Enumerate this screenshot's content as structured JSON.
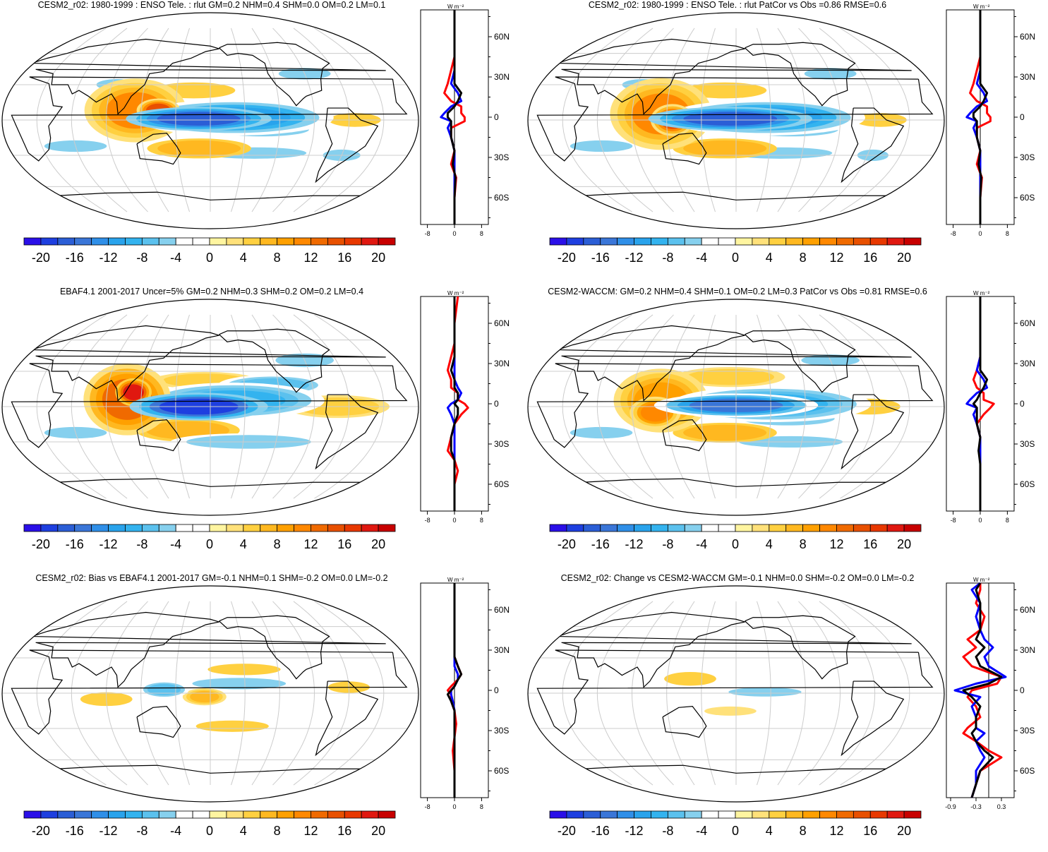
{
  "colorbar": {
    "levels": [
      -22,
      -20,
      -18,
      -16,
      -14,
      -12,
      -10,
      -8,
      -6,
      -4,
      -2,
      0,
      2,
      4,
      6,
      8,
      10,
      12,
      14,
      16,
      18,
      20,
      22
    ],
    "tick_labels": [
      "-20",
      "-16",
      "-12",
      "-8",
      "-4",
      "0",
      "4",
      "8",
      "12",
      "16",
      "20"
    ],
    "tick_values": [
      -20,
      -16,
      -12,
      -8,
      -4,
      0,
      4,
      8,
      12,
      16,
      20
    ],
    "colors": [
      "#2a0fe8",
      "#1e3fe0",
      "#2b5ed6",
      "#3a76d8",
      "#2f8fe8",
      "#29a3ec",
      "#33b3ef",
      "#5bc1ee",
      "#86d0ee",
      "#ffffff",
      "#ffffff",
      "#fff5a0",
      "#ffe17a",
      "#ffd040",
      "#ffb820",
      "#ffa000",
      "#ff8800",
      "#f06a00",
      "#e85000",
      "#e83800",
      "#e01810",
      "#c80000"
    ]
  },
  "zonal_unit": "W m⁻²",
  "lat_ticks": [
    "60N",
    "30N",
    "0",
    "30S",
    "60S"
  ],
  "line_colors": {
    "model": "#ff0000",
    "obs": "#0000ff",
    "diff": "#000000"
  },
  "chart_data": [
    {
      "type": "heatmap",
      "title": "CESM2_r02: 1980-1999 : ENSO Tele. : rlut GM=0.2 NHM=0.4 SHM=0.0 OM=0.2 LM=0.1",
      "zonal_xticks": [
        "-8",
        "0",
        "8"
      ],
      "zonal_xlim": [
        -10,
        10
      ],
      "features": [
        {
          "lon": 170,
          "lat": 1,
          "rlon": 40,
          "rlat": 6,
          "v": -18
        },
        {
          "lon": 200,
          "lat": 2,
          "rlon": 55,
          "rlat": 9,
          "v": -11
        },
        {
          "lon": 225,
          "lat": -8,
          "rlon": 45,
          "rlat": 6,
          "v": -6
        },
        {
          "lon": 115,
          "lat": 8,
          "rlon": 28,
          "rlat": 16,
          "v": 10
        },
        {
          "lon": 135,
          "lat": 8,
          "rlon": 12,
          "rlat": 6,
          "v": 15
        },
        {
          "lon": 165,
          "lat": 25,
          "rlon": 40,
          "rlat": 7,
          "v": 4
        },
        {
          "lon": 170,
          "lat": -24,
          "rlon": 40,
          "rlat": 7,
          "v": 6
        },
        {
          "lon": 95,
          "lat": 30,
          "rlon": 20,
          "rlat": 5,
          "v": -6
        },
        {
          "lon": 60,
          "lat": -22,
          "rlon": 30,
          "rlat": 5,
          "v": -5
        },
        {
          "lon": 220,
          "lat": -28,
          "rlon": 50,
          "rlat": 5,
          "v": -5
        },
        {
          "lon": 305,
          "lat": 0,
          "rlon": 25,
          "rlat": 6,
          "v": 4
        },
        {
          "lon": 300,
          "lat": -30,
          "rlon": 18,
          "rlat": 5,
          "v": -5
        },
        {
          "lon": 270,
          "lat": 40,
          "rlon": 25,
          "rlat": 5,
          "v": -5
        },
        {
          "lon": 40,
          "lat": 5,
          "rlon": 10,
          "rlat": 12,
          "v": -4
        }
      ],
      "zonal": {
        "lat": [
          -80,
          -60,
          -45,
          -35,
          -25,
          -15,
          -8,
          -3,
          0,
          3,
          8,
          12,
          18,
          25,
          35,
          45,
          60,
          80
        ],
        "model": [
          0,
          0,
          0.5,
          -1,
          0,
          -1,
          -1,
          3,
          3,
          2,
          2,
          -1,
          -3,
          -2,
          -1,
          0,
          0,
          0
        ],
        "obs": [
          0,
          0,
          0,
          0,
          0,
          -1,
          -2,
          -1,
          -4,
          -3,
          -1,
          2,
          1,
          -1,
          0,
          0,
          0,
          0
        ],
        "diff": [
          0,
          0,
          0.3,
          -0.5,
          0,
          -1,
          -1,
          -1,
          -2,
          -2,
          0,
          1,
          2,
          0,
          0,
          0,
          0,
          0
        ]
      }
    },
    {
      "type": "heatmap",
      "title": "CESM2_r02: 1980-1999 : ENSO Tele. : rlut PatCor vs Obs =0.86 RMSE=0.6",
      "zonal_xticks": [
        "-8",
        "0",
        "8"
      ],
      "zonal_xlim": [
        -10,
        10
      ],
      "features": [
        {
          "lon": 175,
          "lat": 1,
          "rlon": 45,
          "rlat": 6,
          "v": -18
        },
        {
          "lon": 205,
          "lat": 2,
          "rlon": 55,
          "rlat": 9,
          "v": -11
        },
        {
          "lon": 228,
          "lat": -8,
          "rlon": 45,
          "rlat": 6,
          "v": -6
        },
        {
          "lon": 115,
          "lat": 5,
          "rlon": 28,
          "rlat": 18,
          "v": 10
        },
        {
          "lon": 125,
          "lat": 0,
          "rlon": 12,
          "rlat": 8,
          "v": 14
        },
        {
          "lon": 170,
          "lat": 25,
          "rlon": 40,
          "rlat": 7,
          "v": 4
        },
        {
          "lon": 170,
          "lat": -24,
          "rlon": 40,
          "rlat": 7,
          "v": 6
        },
        {
          "lon": 95,
          "lat": 30,
          "rlon": 20,
          "rlat": 5,
          "v": -6
        },
        {
          "lon": 60,
          "lat": -22,
          "rlon": 30,
          "rlat": 5,
          "v": -5
        },
        {
          "lon": 220,
          "lat": -28,
          "rlon": 50,
          "rlat": 5,
          "v": -5
        },
        {
          "lon": 305,
          "lat": 0,
          "rlon": 25,
          "rlat": 6,
          "v": 4
        },
        {
          "lon": 305,
          "lat": -30,
          "rlon": 15,
          "rlat": 5,
          "v": -5
        },
        {
          "lon": 270,
          "lat": 40,
          "rlon": 25,
          "rlat": 5,
          "v": -5
        }
      ],
      "zonal": {
        "lat": [
          -80,
          -60,
          -45,
          -35,
          -25,
          -15,
          -8,
          -3,
          0,
          3,
          8,
          12,
          18,
          25,
          35,
          45,
          60,
          80
        ],
        "model": [
          0,
          0,
          0.5,
          -1,
          0,
          -1,
          -1,
          3,
          3,
          2,
          2,
          -1,
          -3,
          -2,
          -1,
          0,
          0,
          0
        ],
        "obs": [
          0,
          0,
          0,
          0,
          0,
          -1,
          -2,
          -1,
          -4,
          -3,
          -1,
          2,
          1,
          -1,
          0,
          0,
          0,
          0
        ],
        "diff": [
          0,
          0,
          0.3,
          -0.5,
          0,
          -1,
          -1,
          -1,
          -2,
          -2,
          0,
          1,
          2,
          0,
          0,
          0,
          0,
          0
        ]
      }
    },
    {
      "type": "heatmap",
      "title": "EBAF4.1 2001-2017 Uncer=5% GM=0.2 NHM=0.3 SHM=0.2 OM=0.2 LM=0.4",
      "zonal_xticks": [
        "-8",
        "0",
        "8"
      ],
      "zonal_xlim": [
        -10,
        10
      ],
      "features": [
        {
          "lon": 170,
          "lat": 0,
          "rlon": 38,
          "rlat": 7,
          "v": -20
        },
        {
          "lon": 200,
          "lat": 5,
          "rlon": 50,
          "rlat": 9,
          "v": -10
        },
        {
          "lon": 235,
          "lat": 18,
          "rlon": 35,
          "rlat": 6,
          "v": -8
        },
        {
          "lon": 108,
          "lat": 6,
          "rlon": 24,
          "rlat": 18,
          "v": 12
        },
        {
          "lon": 113,
          "lat": 12,
          "rlon": 10,
          "rlat": 7,
          "v": 18
        },
        {
          "lon": 175,
          "lat": 22,
          "rlon": 40,
          "rlat": 6,
          "v": 5
        },
        {
          "lon": 160,
          "lat": -20,
          "rlon": 40,
          "rlat": 8,
          "v": 6
        },
        {
          "lon": 215,
          "lat": -30,
          "rlon": 60,
          "rlat": 6,
          "v": -6
        },
        {
          "lon": 60,
          "lat": -22,
          "rlon": 30,
          "rlat": 5,
          "v": -5
        },
        {
          "lon": 290,
          "lat": 0,
          "rlon": 40,
          "rlat": 8,
          "v": 5
        },
        {
          "lon": 270,
          "lat": 40,
          "rlon": 28,
          "rlat": 6,
          "v": -5
        },
        {
          "lon": 320,
          "lat": 42,
          "rlon": 18,
          "rlat": 4,
          "v": -4
        }
      ],
      "zonal": {
        "lat": [
          -80,
          -60,
          -50,
          -42,
          -35,
          -25,
          -15,
          -8,
          -3,
          0,
          3,
          8,
          12,
          18,
          25,
          35,
          45,
          60,
          80
        ],
        "model": [
          0,
          0,
          1,
          0,
          -2,
          -1,
          0,
          2,
          4,
          3,
          1,
          1,
          -1,
          -1,
          -2,
          -1,
          0,
          0,
          1
        ],
        "obs": [
          0,
          0,
          0,
          0,
          0,
          0,
          0,
          -1,
          -2,
          -1,
          1,
          2,
          1,
          0,
          0,
          0,
          0,
          0,
          0
        ],
        "diff": [
          0,
          0,
          0,
          0,
          -1,
          -1,
          0,
          1,
          1,
          0,
          1,
          1,
          0,
          0,
          -1,
          0,
          0,
          0,
          0
        ]
      }
    },
    {
      "type": "heatmap",
      "title": "CESM2-WACCM: GM=0.2 NHM=0.4 SHM=0.1 OM=0.2 LM=0.3 PatCor vs Obs =0.81 RMSE=0.6",
      "zonal_xticks": [
        "-8",
        "0",
        "8"
      ],
      "zonal_xlim": [
        -10,
        10
      ],
      "features": [
        {
          "lon": 180,
          "lat": 1,
          "rlon": 45,
          "rlat": 6,
          "v": -16
        },
        {
          "lon": 210,
          "lat": 2,
          "rlon": 55,
          "rlat": 9,
          "v": -10
        },
        {
          "lon": 225,
          "lat": -10,
          "rlon": 45,
          "rlat": 6,
          "v": -6
        },
        {
          "lon": 115,
          "lat": 5,
          "rlon": 26,
          "rlat": 16,
          "v": 9
        },
        {
          "lon": 110,
          "lat": -5,
          "rlon": 14,
          "rlat": 8,
          "v": 11
        },
        {
          "lon": 175,
          "lat": 25,
          "rlon": 42,
          "rlat": 7,
          "v": 5
        },
        {
          "lon": 170,
          "lat": -22,
          "rlon": 40,
          "rlat": 7,
          "v": 6
        },
        {
          "lon": 60,
          "lat": -22,
          "rlon": 30,
          "rlat": 5,
          "v": -5
        },
        {
          "lon": 230,
          "lat": -30,
          "rlon": 50,
          "rlat": 5,
          "v": -5
        },
        {
          "lon": 295,
          "lat": 0,
          "rlon": 30,
          "rlat": 7,
          "v": 4
        },
        {
          "lon": 270,
          "lat": 40,
          "rlon": 28,
          "rlat": 5,
          "v": -5
        }
      ],
      "zonal": {
        "lat": [
          -80,
          -60,
          -45,
          -35,
          -25,
          -15,
          -8,
          -3,
          0,
          3,
          8,
          12,
          18,
          25,
          35,
          45,
          60,
          80
        ],
        "model": [
          0,
          0,
          0,
          0,
          0,
          -1,
          1,
          3,
          4,
          1,
          1,
          -1,
          -2,
          -1,
          0,
          0,
          0,
          0
        ],
        "obs": [
          0,
          0,
          0,
          0,
          0,
          -1,
          -2,
          -1,
          -4,
          -3,
          -1,
          2,
          1,
          -1,
          0,
          0,
          0,
          0
        ],
        "diff": [
          0,
          0,
          0,
          -0.5,
          0,
          -1,
          -1,
          -1,
          -2,
          -1,
          0,
          1,
          2,
          0,
          0,
          0,
          0,
          0
        ]
      }
    },
    {
      "type": "heatmap",
      "title": "CESM2_r02: Bias vs EBAF4.1 2001-2017 GM=-0.1 NHM=0.1 SHM=-0.2 OM=0.0 LM=-0.2",
      "zonal_xticks": [
        "-8",
        "0",
        "8"
      ],
      "zonal_xlim": [
        -10,
        10
      ],
      "features": [
        {
          "lon": 140,
          "lat": 3,
          "rlon": 16,
          "rlat": 5,
          "v": -8
        },
        {
          "lon": 175,
          "lat": -3,
          "rlon": 14,
          "rlat": 5,
          "v": 7
        },
        {
          "lon": 205,
          "lat": 8,
          "rlon": 45,
          "rlat": 5,
          "v": -5
        },
        {
          "lon": 210,
          "lat": 20,
          "rlon": 35,
          "rlat": 5,
          "v": 4
        },
        {
          "lon": 90,
          "lat": -5,
          "rlon": 25,
          "rlat": 6,
          "v": 4
        },
        {
          "lon": 200,
          "lat": -28,
          "rlon": 35,
          "rlat": 5,
          "v": 4
        },
        {
          "lon": 70,
          "lat": 35,
          "rlon": 30,
          "rlat": 5,
          "v": -4
        },
        {
          "lon": 160,
          "lat": 40,
          "rlon": 20,
          "rlat": 4,
          "v": -4
        },
        {
          "lon": 290,
          "lat": -15,
          "rlon": 20,
          "rlat": 6,
          "v": -4
        },
        {
          "lon": 300,
          "lat": 5,
          "rlon": 20,
          "rlat": 5,
          "v": 4
        }
      ],
      "zonal": {
        "lat": [
          -80,
          -60,
          -45,
          -35,
          -25,
          -15,
          -8,
          -3,
          0,
          3,
          8,
          12,
          18,
          25,
          35,
          45,
          60,
          80
        ],
        "model": [
          0,
          0,
          -0.5,
          0,
          0.5,
          0,
          -1,
          -1,
          -2,
          -1,
          1,
          2,
          1,
          0,
          0,
          0,
          0,
          0
        ],
        "obs": [
          0,
          0,
          0,
          0,
          0,
          0,
          -0.5,
          -1,
          -1,
          0,
          1,
          1,
          0,
          0,
          0,
          0,
          0,
          0
        ],
        "diff": [
          0,
          0,
          0,
          0,
          0,
          0,
          -1,
          -2,
          -1,
          0,
          1,
          2,
          1,
          0,
          0,
          0,
          0,
          0
        ]
      }
    },
    {
      "type": "heatmap",
      "title": "CESM2_r02: Change vs CESM2-WACCM GM=-0.1 NHM=0.0 SHM=-0.2 OM=0.0 LM=-0.2",
      "zonal_xticks": [
        "-0.9",
        "-0.3",
        "0.3"
      ],
      "zonal_xlim": [
        -1.0,
        0.6
      ],
      "features": [
        {
          "lon": 140,
          "lat": 12,
          "rlon": 25,
          "rlat": 6,
          "v": 4
        },
        {
          "lon": 205,
          "lat": 1,
          "rlon": 35,
          "rlat": 4,
          "v": -5
        },
        {
          "lon": 90,
          "lat": -5,
          "rlon": 12,
          "rlat": 4,
          "v": -4
        },
        {
          "lon": 45,
          "lat": 8,
          "rlon": 10,
          "rlat": 5,
          "v": -4
        },
        {
          "lon": 175,
          "lat": -15,
          "rlon": 25,
          "rlat": 4,
          "v": 3
        }
      ],
      "zonal": {
        "lat": [
          -80,
          -70,
          -60,
          -50,
          -45,
          -38,
          -32,
          -28,
          -20,
          -12,
          -5,
          0,
          5,
          10,
          18,
          25,
          32,
          38,
          45,
          55,
          65,
          75,
          80
        ],
        "model": [
          -0.4,
          -0.3,
          -0.2,
          0.3,
          0.0,
          -0.3,
          -0.6,
          -0.5,
          -0.2,
          -0.3,
          -0.5,
          -0.4,
          0.2,
          0.3,
          -0.4,
          -0.6,
          -0.3,
          -0.5,
          -0.2,
          -0.1,
          -0.3,
          -0.2,
          -0.2
        ],
        "obs": [
          -0.4,
          -0.3,
          -0.3,
          -0.1,
          -0.2,
          -0.3,
          -0.1,
          -0.3,
          -0.3,
          -0.4,
          -0.2,
          -0.8,
          -0.3,
          0.4,
          0.0,
          -0.1,
          0.1,
          -0.1,
          -0.2,
          -0.3,
          -0.2,
          -0.4,
          -0.2
        ],
        "diff": [
          -0.4,
          -0.3,
          -0.2,
          0.1,
          -0.1,
          -0.3,
          -0.4,
          -0.3,
          -0.3,
          -0.2,
          -0.4,
          -0.6,
          0.0,
          0.3,
          -0.2,
          -0.3,
          -0.1,
          -0.3,
          -0.2,
          -0.2,
          -0.2,
          -0.3,
          -0.2
        ]
      }
    }
  ]
}
